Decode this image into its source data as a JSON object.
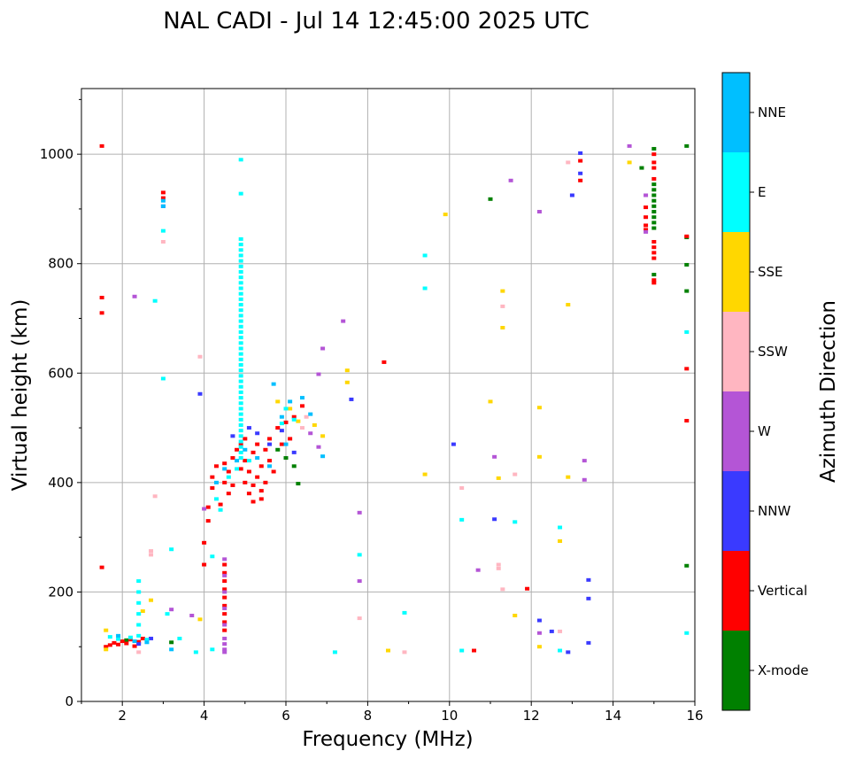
{
  "chart_data": {
    "type": "scatter",
    "title": "NAL CADI - Jul 14 12:45:00 2025 UTC",
    "xlabel": "Frequency (MHz)",
    "ylabel": "Virtual height (km)",
    "xlim": [
      1,
      16
    ],
    "ylim": [
      0,
      1120
    ],
    "xticks": [
      2,
      4,
      6,
      8,
      10,
      12,
      14,
      16
    ],
    "yticks": [
      0,
      200,
      400,
      600,
      800,
      1000
    ],
    "grid": true,
    "colorbar": {
      "label": "Azimuth Direction",
      "categories": [
        "X-mode",
        "Vertical",
        "NNW",
        "W",
        "SSW",
        "SSE",
        "E",
        "NNE"
      ],
      "colors": [
        "#008000",
        "#ff0000",
        "#3a3aff",
        "#b455d6",
        "#ffb6c1",
        "#ffd700",
        "#00ffff",
        "#00bfff"
      ]
    },
    "series": [
      {
        "name": "X-mode",
        "points": [
          [
            15,
            945
          ],
          [
            15,
            935
          ],
          [
            15,
            925
          ],
          [
            15,
            915
          ],
          [
            15,
            905
          ],
          [
            15,
            895
          ],
          [
            15,
            885
          ],
          [
            15,
            875
          ],
          [
            15,
            865
          ],
          [
            15,
            780
          ],
          [
            15,
            1010
          ],
          [
            15.8,
            1015
          ],
          [
            15.8,
            848
          ],
          [
            15.8,
            798
          ],
          [
            15.8,
            750
          ],
          [
            15.8,
            248
          ],
          [
            14.7,
            975
          ],
          [
            11,
            918
          ],
          [
            6,
            445
          ],
          [
            6.2,
            430
          ],
          [
            5.8,
            460
          ],
          [
            6.3,
            398
          ],
          [
            3.2,
            108
          ],
          [
            2.1,
            112
          ]
        ]
      },
      {
        "name": "Vertical",
        "points": [
          [
            1.5,
            1015
          ],
          [
            1.5,
            738
          ],
          [
            1.5,
            710
          ],
          [
            1.5,
            245
          ],
          [
            15,
            1000
          ],
          [
            15,
            985
          ],
          [
            15,
            975
          ],
          [
            15,
            955
          ],
          [
            15,
            840
          ],
          [
            15,
            830
          ],
          [
            15,
            820
          ],
          [
            15,
            810
          ],
          [
            15,
            770
          ],
          [
            15,
            765
          ],
          [
            14.8,
            903
          ],
          [
            14.8,
            885
          ],
          [
            14.8,
            870
          ],
          [
            14.8,
            862
          ],
          [
            15.8,
            608
          ],
          [
            15.8,
            513
          ],
          [
            15.8,
            850
          ],
          [
            13.2,
            988
          ],
          [
            13.2,
            952
          ],
          [
            11.9,
            206
          ],
          [
            10.6,
            93
          ],
          [
            8.4,
            620
          ],
          [
            4.5,
            250
          ],
          [
            4.5,
            235
          ],
          [
            4.5,
            220
          ],
          [
            4.5,
            205
          ],
          [
            4.5,
            190
          ],
          [
            4.5,
            175
          ],
          [
            4.5,
            160
          ],
          [
            4.5,
            145
          ],
          [
            4.5,
            130
          ],
          [
            4.1,
            355
          ],
          [
            4.1,
            330
          ],
          [
            4.2,
            390
          ],
          [
            4.2,
            410
          ],
          [
            4.3,
            430
          ],
          [
            4.5,
            435
          ],
          [
            4.6,
            420
          ],
          [
            4.7,
            445
          ],
          [
            4.8,
            460
          ],
          [
            4.9,
            470
          ],
          [
            5,
            480
          ],
          [
            5,
            440
          ],
          [
            5,
            400
          ],
          [
            5.1,
            420
          ],
          [
            5.1,
            380
          ],
          [
            5.2,
            455
          ],
          [
            5.2,
            395
          ],
          [
            5.3,
            470
          ],
          [
            5.3,
            410
          ],
          [
            5.4,
            430
          ],
          [
            5.4,
            385
          ],
          [
            5.5,
            460
          ],
          [
            5.5,
            400
          ],
          [
            5.6,
            480
          ],
          [
            5.6,
            440
          ],
          [
            5.7,
            420
          ],
          [
            5.8,
            500
          ],
          [
            5.9,
            470
          ],
          [
            6,
            510
          ],
          [
            6.1,
            480
          ],
          [
            6.2,
            520
          ],
          [
            6.4,
            540
          ],
          [
            4.4,
            360
          ],
          [
            4.5,
            400
          ],
          [
            4.6,
            380
          ],
          [
            4.7,
            395
          ],
          [
            4.9,
            425
          ],
          [
            5.2,
            365
          ],
          [
            5.4,
            370
          ],
          [
            4,
            250
          ],
          [
            4,
            290
          ],
          [
            1.6,
            100
          ],
          [
            1.7,
            103
          ],
          [
            1.8,
            107
          ],
          [
            1.9,
            104
          ],
          [
            2,
            110
          ],
          [
            2.1,
            106
          ],
          [
            2.2,
            113
          ],
          [
            2.3,
            101
          ],
          [
            2.4,
            109
          ],
          [
            2.5,
            115
          ],
          [
            3,
            930
          ],
          [
            3,
            920
          ]
        ]
      },
      {
        "name": "NNW",
        "points": [
          [
            13.2,
            1002
          ],
          [
            13.2,
            965
          ],
          [
            13,
            925
          ],
          [
            13.4,
            222
          ],
          [
            13.4,
            188
          ],
          [
            13.4,
            107
          ],
          [
            12.9,
            90
          ],
          [
            12.5,
            128
          ],
          [
            12.2,
            148
          ],
          [
            11.1,
            333
          ],
          [
            10.1,
            470
          ],
          [
            7.6,
            552
          ],
          [
            3.9,
            562
          ],
          [
            5.9,
            495
          ],
          [
            6.2,
            455
          ],
          [
            5.6,
            470
          ],
          [
            5.3,
            490
          ],
          [
            4.7,
            485
          ],
          [
            2.7,
            115
          ],
          [
            2.4,
            105
          ],
          [
            3,
            905
          ],
          [
            5.1,
            500
          ]
        ]
      },
      {
        "name": "W",
        "points": [
          [
            14.4,
            1015
          ],
          [
            14.8,
            925
          ],
          [
            14.8,
            858
          ],
          [
            13.3,
            440
          ],
          [
            13.3,
            405
          ],
          [
            12.2,
            125
          ],
          [
            10.7,
            240
          ],
          [
            11.1,
            447
          ],
          [
            11.5,
            952
          ],
          [
            12.2,
            895
          ],
          [
            7.8,
            345
          ],
          [
            7.8,
            220
          ],
          [
            7.4,
            695
          ],
          [
            6.9,
            645
          ],
          [
            6.8,
            598
          ],
          [
            4.5,
            115
          ],
          [
            4.5,
            105
          ],
          [
            4.5,
            95
          ],
          [
            4.5,
            90
          ],
          [
            4.5,
            140
          ],
          [
            4.5,
            170
          ],
          [
            4.5,
            200
          ],
          [
            4.5,
            230
          ],
          [
            4.5,
            260
          ],
          [
            3.7,
            157
          ],
          [
            4,
            352
          ],
          [
            6.6,
            490
          ],
          [
            6.8,
            465
          ],
          [
            2.3,
            740
          ],
          [
            3.2,
            168
          ]
        ]
      },
      {
        "name": "SSW",
        "points": [
          [
            12.9,
            985
          ],
          [
            12.7,
            128
          ],
          [
            11.2,
            250
          ],
          [
            11.2,
            243
          ],
          [
            11.3,
            722
          ],
          [
            11.3,
            205
          ],
          [
            11.6,
            415
          ],
          [
            10.3,
            390
          ],
          [
            8.9,
            90
          ],
          [
            7.8,
            152
          ],
          [
            3.9,
            630
          ],
          [
            2.7,
            275
          ],
          [
            2.7,
            268
          ],
          [
            2.8,
            375
          ],
          [
            2.4,
            90
          ],
          [
            3,
            840
          ],
          [
            6.4,
            500
          ],
          [
            6.5,
            520
          ]
        ]
      },
      {
        "name": "SSE",
        "points": [
          [
            14.4,
            985
          ],
          [
            12.9,
            725
          ],
          [
            12.9,
            410
          ],
          [
            12.7,
            293
          ],
          [
            12.2,
            447
          ],
          [
            12.2,
            100
          ],
          [
            12.2,
            537
          ],
          [
            11.6,
            157
          ],
          [
            11.3,
            750
          ],
          [
            11.3,
            683
          ],
          [
            11.2,
            408
          ],
          [
            11,
            548
          ],
          [
            9.9,
            890
          ],
          [
            9.4,
            415
          ],
          [
            8.5,
            93
          ],
          [
            7.5,
            605
          ],
          [
            7.5,
            583
          ],
          [
            5.8,
            548
          ],
          [
            6.1,
            535
          ],
          [
            6.3,
            512
          ],
          [
            6.7,
            505
          ],
          [
            6.9,
            485
          ],
          [
            3.9,
            150
          ],
          [
            1.6,
            95
          ],
          [
            1.6,
            130
          ],
          [
            2.5,
            165
          ],
          [
            2.7,
            185
          ]
        ]
      },
      {
        "name": "E",
        "points": [
          [
            15.8,
            675
          ],
          [
            15.8,
            125
          ],
          [
            12.7,
            318
          ],
          [
            12.7,
            93
          ],
          [
            11.6,
            328
          ],
          [
            10.3,
            332
          ],
          [
            10.3,
            93
          ],
          [
            9.4,
            815
          ],
          [
            9.4,
            755
          ],
          [
            8.9,
            162
          ],
          [
            7.8,
            268
          ],
          [
            7.2,
            90
          ],
          [
            6,
            535
          ],
          [
            6.2,
            515
          ],
          [
            5.9,
            508
          ],
          [
            4.9,
            990
          ],
          [
            4.9,
            928
          ],
          [
            4.9,
            845
          ],
          [
            4.9,
            835
          ],
          [
            4.9,
            825
          ],
          [
            4.9,
            815
          ],
          [
            4.9,
            805
          ],
          [
            4.9,
            795
          ],
          [
            4.9,
            785
          ],
          [
            4.9,
            775
          ],
          [
            4.9,
            765
          ],
          [
            4.9,
            755
          ],
          [
            4.9,
            745
          ],
          [
            4.9,
            735
          ],
          [
            4.9,
            725
          ],
          [
            4.9,
            715
          ],
          [
            4.9,
            705
          ],
          [
            4.9,
            695
          ],
          [
            4.9,
            685
          ],
          [
            4.9,
            675
          ],
          [
            4.9,
            665
          ],
          [
            4.9,
            655
          ],
          [
            4.9,
            645
          ],
          [
            4.9,
            635
          ],
          [
            4.9,
            625
          ],
          [
            4.9,
            615
          ],
          [
            4.9,
            605
          ],
          [
            4.9,
            595
          ],
          [
            4.9,
            585
          ],
          [
            4.9,
            575
          ],
          [
            4.9,
            565
          ],
          [
            4.9,
            555
          ],
          [
            4.9,
            545
          ],
          [
            4.9,
            535
          ],
          [
            4.9,
            525
          ],
          [
            4.9,
            515
          ],
          [
            4.9,
            505
          ],
          [
            4.9,
            495
          ],
          [
            4.9,
            485
          ],
          [
            4.9,
            475
          ],
          [
            4.9,
            465
          ],
          [
            4.9,
            455
          ],
          [
            4.9,
            445
          ],
          [
            3,
            590
          ],
          [
            3,
            860
          ],
          [
            2.8,
            732
          ],
          [
            2.4,
            220
          ],
          [
            2.4,
            200
          ],
          [
            2.4,
            180
          ],
          [
            2.4,
            160
          ],
          [
            2.4,
            140
          ],
          [
            2.4,
            120
          ],
          [
            3.1,
            160
          ],
          [
            3.2,
            278
          ],
          [
            3.4,
            115
          ],
          [
            3.8,
            90
          ],
          [
            4.2,
            95
          ],
          [
            4.2,
            265
          ],
          [
            1.7,
            118
          ],
          [
            1.9,
            114
          ],
          [
            2.2,
            117
          ],
          [
            2.6,
            113
          ],
          [
            4.3,
            370
          ],
          [
            4.4,
            350
          ],
          [
            4.6,
            410
          ],
          [
            4.8,
            425
          ],
          [
            5.1,
            440
          ]
        ]
      },
      {
        "name": "NNE",
        "points": [
          [
            5.7,
            580
          ],
          [
            6.1,
            548
          ],
          [
            6.4,
            555
          ],
          [
            6.6,
            525
          ],
          [
            6.9,
            448
          ],
          [
            5.9,
            520
          ],
          [
            4.3,
            400
          ],
          [
            4.5,
            425
          ],
          [
            4.8,
            440
          ],
          [
            5,
            460
          ],
          [
            5.3,
            445
          ],
          [
            5.6,
            430
          ],
          [
            6,
            470
          ],
          [
            3,
            915
          ],
          [
            3,
            905
          ],
          [
            2.3,
            110
          ],
          [
            1.9,
            120
          ],
          [
            2.6,
            108
          ],
          [
            3.2,
            95
          ]
        ]
      }
    ]
  }
}
